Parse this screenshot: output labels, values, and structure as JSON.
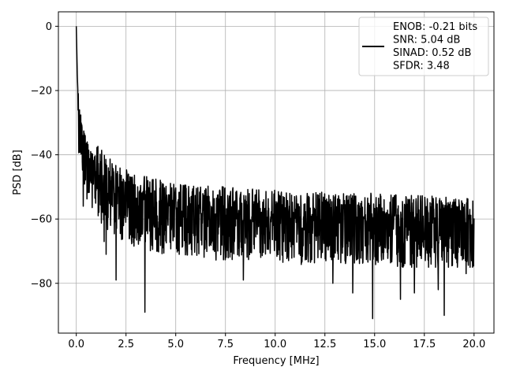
{
  "chart_data": {
    "type": "line",
    "title": "",
    "xlabel": "Frequency [MHz]",
    "ylabel": "PSD [dB]",
    "xlim": [
      -0.9,
      21.0
    ],
    "ylim": [
      -95.5,
      4.5
    ],
    "xticks": [
      0.0,
      2.5,
      5.0,
      7.5,
      10.0,
      12.5,
      15.0,
      17.5,
      20.0
    ],
    "xtick_labels": [
      "0.0",
      "2.5",
      "5.0",
      "7.5",
      "10.0",
      "12.5",
      "15.0",
      "17.5",
      "20.0"
    ],
    "yticks": [
      0,
      -20,
      -40,
      -60,
      -80
    ],
    "ytick_labels": [
      "0",
      "−20",
      "−40",
      "−60",
      "−80"
    ],
    "grid": true,
    "legend_position": "upper right",
    "legend_lines": [
      "ENOB: -0.21 bits",
      "SNR: 5.04 dB",
      "SINAD: 0.52 dB",
      "SFDR: 3.48"
    ],
    "series": [
      {
        "color": "#000000",
        "envelope_points": [
          {
            "x": 0.0,
            "y": 0
          },
          {
            "x": 0.05,
            "y": -15
          },
          {
            "x": 0.1,
            "y": -24
          },
          {
            "x": 0.2,
            "y": -30
          },
          {
            "x": 0.3,
            "y": -34
          },
          {
            "x": 0.5,
            "y": -40
          },
          {
            "x": 0.8,
            "y": -44
          },
          {
            "x": 1.2,
            "y": -47
          },
          {
            "x": 2.0,
            "y": -52
          },
          {
            "x": 3.0,
            "y": -55
          },
          {
            "x": 5.0,
            "y": -58
          },
          {
            "x": 10.0,
            "y": -60
          },
          {
            "x": 20.0,
            "y": -62
          }
        ],
        "notable_dips": [
          {
            "x": 0.35,
            "y": -56
          },
          {
            "x": 1.4,
            "y": -67
          },
          {
            "x": 1.5,
            "y": -71
          },
          {
            "x": 2.0,
            "y": -79
          },
          {
            "x": 3.45,
            "y": -89
          },
          {
            "x": 8.4,
            "y": -79
          },
          {
            "x": 12.9,
            "y": -80
          },
          {
            "x": 13.9,
            "y": -83
          },
          {
            "x": 14.9,
            "y": -91
          },
          {
            "x": 16.3,
            "y": -85
          },
          {
            "x": 17.0,
            "y": -83
          },
          {
            "x": 18.2,
            "y": -82
          },
          {
            "x": 18.5,
            "y": -90
          },
          {
            "x": 19.6,
            "y": -77
          }
        ],
        "x_start": 0.0,
        "x_end": 20.0
      }
    ]
  }
}
